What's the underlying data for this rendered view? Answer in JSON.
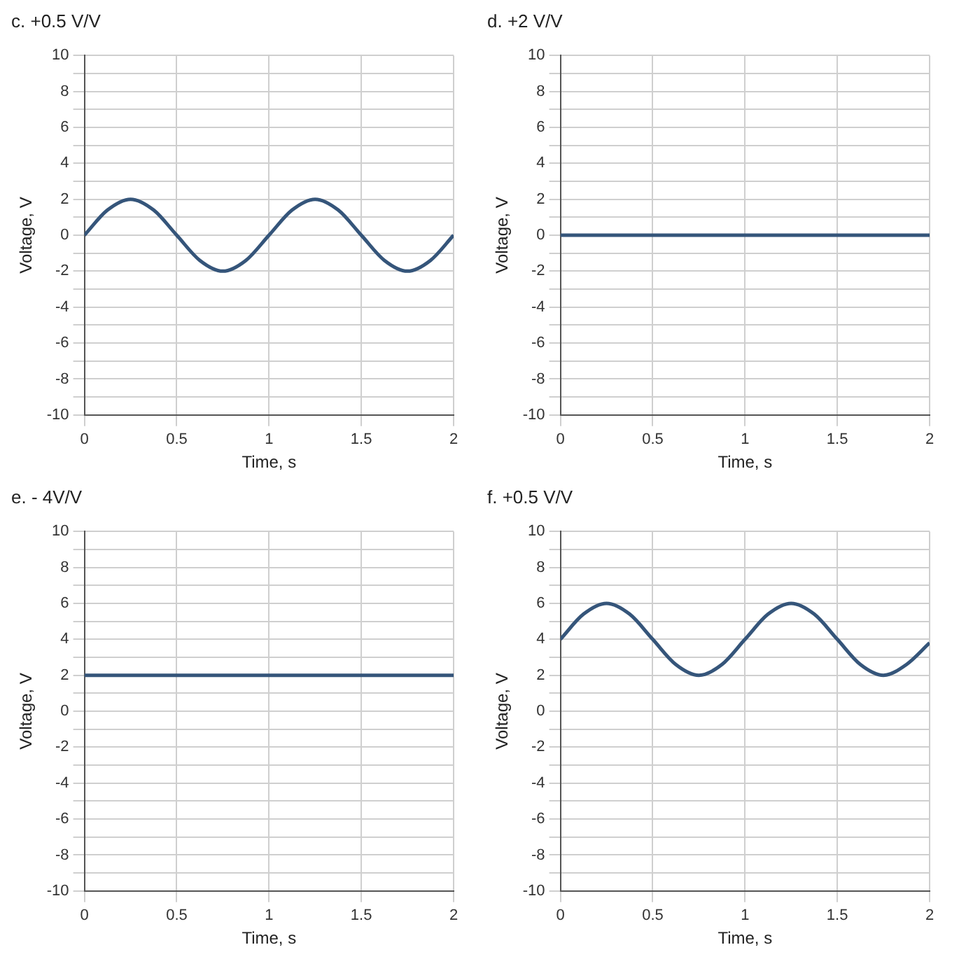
{
  "chart_data": [
    {
      "type": "line",
      "title": "c. +0.5 V/V",
      "xlabel": "Time, s",
      "ylabel": "Voltage, V",
      "x": [
        0,
        0.125,
        0.25,
        0.375,
        0.5,
        0.625,
        0.75,
        0.875,
        1,
        1.125,
        1.25,
        1.375,
        1.5,
        1.625,
        1.75,
        1.875,
        2
      ],
      "series": [
        {
          "color": "#35557a",
          "values": [
            0,
            1.4,
            2,
            1.4,
            0,
            -1.4,
            -2,
            -1.4,
            0,
            1.4,
            2,
            1.4,
            0,
            -1.4,
            -2,
            -1.4,
            0
          ]
        }
      ],
      "xlim": [
        0,
        2
      ],
      "xticks": [
        0,
        0.5,
        1,
        1.5,
        2
      ],
      "ylim": [
        -10,
        10
      ],
      "yticks": [
        -10,
        {
          "value": -9,
          "label": null
        },
        -8,
        {
          "value": -7,
          "label": null
        },
        -6,
        {
          "value": -5,
          "label": null
        },
        -4,
        {
          "value": -3,
          "label": null
        },
        -2,
        {
          "value": -1,
          "label": null
        },
        0,
        {
          "value": 1,
          "label": null
        },
        2,
        {
          "value": 3,
          "label": null
        },
        4,
        {
          "value": 5,
          "label": null
        },
        6,
        {
          "value": 7,
          "label": null
        },
        8,
        {
          "value": 9,
          "label": null
        },
        10
      ],
      "grid": true
    },
    {
      "type": "line",
      "title": "d. +2 V/V",
      "xlabel": "Time, s",
      "ylabel": "Voltage, V",
      "x": [
        0,
        2
      ],
      "series": [
        {
          "color": "#35557a",
          "values": [
            0,
            0
          ]
        }
      ],
      "xlim": [
        0,
        2
      ],
      "xticks": [
        0,
        0.5,
        1,
        1.5,
        2
      ],
      "ylim": [
        -10,
        10
      ],
      "yticks": [
        -10,
        {
          "value": -9,
          "label": null
        },
        -8,
        {
          "value": -7,
          "label": null
        },
        -6,
        {
          "value": -5,
          "label": null
        },
        -4,
        {
          "value": -3,
          "label": null
        },
        -2,
        {
          "value": -1,
          "label": null
        },
        0,
        {
          "value": 1,
          "label": null
        },
        2,
        {
          "value": 3,
          "label": null
        },
        4,
        {
          "value": 5,
          "label": null
        },
        6,
        {
          "value": 7,
          "label": null
        },
        8,
        {
          "value": 9,
          "label": null
        },
        10
      ],
      "grid": true
    },
    {
      "type": "line",
      "title": "e. - 4V/V",
      "xlabel": "Time, s",
      "ylabel": "Voltage, V",
      "x": [
        0,
        2
      ],
      "series": [
        {
          "color": "#35557a",
          "values": [
            2,
            2
          ]
        }
      ],
      "xlim": [
        0,
        2
      ],
      "xticks": [
        0,
        0.5,
        1,
        1.5,
        2
      ],
      "ylim": [
        -10,
        10
      ],
      "yticks": [
        -10,
        {
          "value": -9,
          "label": null
        },
        -8,
        {
          "value": -7,
          "label": null
        },
        -6,
        {
          "value": -5,
          "label": null
        },
        -4,
        {
          "value": -3,
          "label": null
        },
        -2,
        {
          "value": -1,
          "label": null
        },
        0,
        {
          "value": 1,
          "label": null
        },
        2,
        {
          "value": 3,
          "label": null
        },
        4,
        {
          "value": 5,
          "label": null
        },
        6,
        {
          "value": 7,
          "label": null
        },
        8,
        {
          "value": 9,
          "label": null
        },
        10
      ],
      "grid": true
    },
    {
      "type": "line",
      "title": "f. +0.5 V/V",
      "xlabel": "Time, s",
      "ylabel": "Voltage, V",
      "x": [
        0,
        0.125,
        0.25,
        0.375,
        0.5,
        0.625,
        0.75,
        0.875,
        1,
        1.125,
        1.25,
        1.375,
        1.5,
        1.625,
        1.75,
        1.875,
        2
      ],
      "series": [
        {
          "color": "#35557a",
          "values": [
            4,
            5.4,
            6,
            5.4,
            4,
            2.6,
            2,
            2.6,
            4,
            5.4,
            6,
            5.4,
            4,
            2.6,
            2,
            2.6,
            3.8
          ]
        }
      ],
      "xlim": [
        0,
        2
      ],
      "xticks": [
        0,
        0.5,
        1,
        1.5,
        2
      ],
      "ylim": [
        -10,
        10
      ],
      "yticks": [
        -10,
        {
          "value": -9,
          "label": null
        },
        -8,
        {
          "value": -7,
          "label": null
        },
        -6,
        {
          "value": -5,
          "label": null
        },
        -4,
        {
          "value": -3,
          "label": null
        },
        -2,
        {
          "value": -1,
          "label": null
        },
        0,
        {
          "value": 1,
          "label": null
        },
        2,
        {
          "value": 3,
          "label": null
        },
        4,
        {
          "value": 5,
          "label": null
        },
        6,
        {
          "value": 7,
          "label": null
        },
        8,
        {
          "value": 9,
          "label": null
        },
        10
      ],
      "grid": true
    }
  ]
}
